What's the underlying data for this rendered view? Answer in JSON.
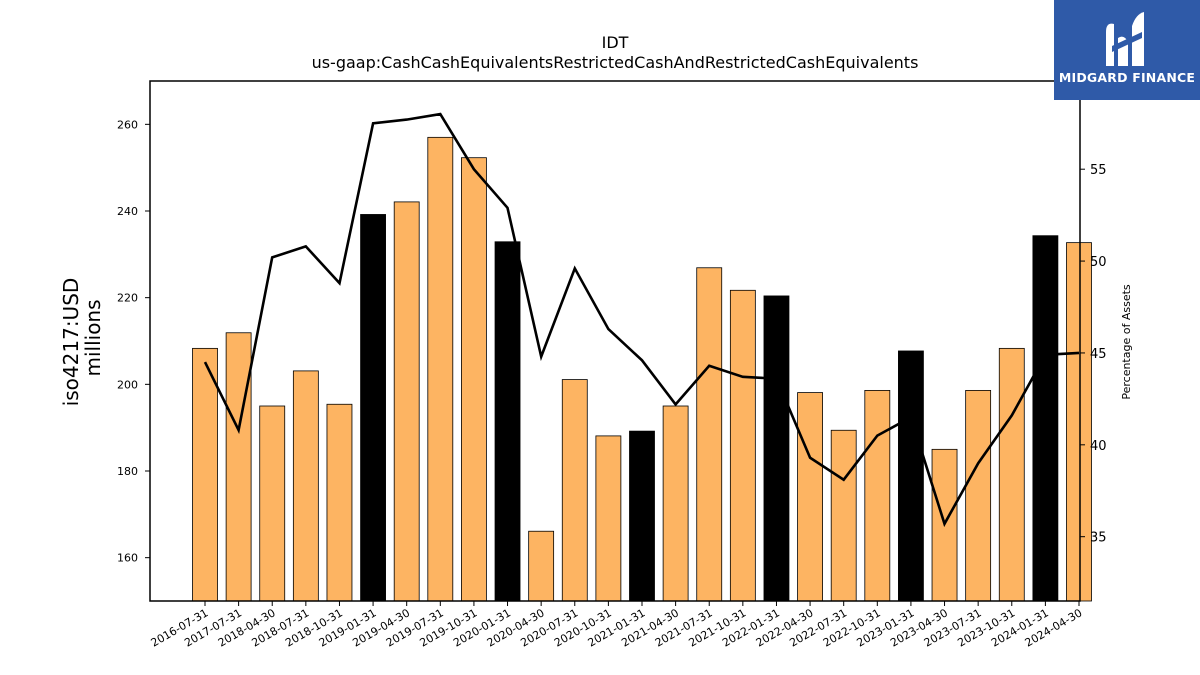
{
  "chart_data": {
    "type": "bar",
    "title": "IDT",
    "subtitle": "us-gaap:CashCashEquivalentsRestrictedCashAndRestrictedCashEquivalents",
    "ylabel": "iso4217:USD",
    "ylabel2": "millions",
    "y2label": "Percentage of Assets",
    "ylim": [
      150,
      270
    ],
    "y2lim": [
      31.5,
      59.8
    ],
    "yticks": [
      160,
      180,
      200,
      220,
      240,
      260
    ],
    "y2ticks": [
      35,
      40,
      45,
      50,
      55
    ],
    "categories": [
      "2016-07-31",
      "2017-07-31",
      "2018-04-30",
      "2018-07-31",
      "2018-10-31",
      "2019-01-31",
      "2019-04-30",
      "2019-07-31",
      "2019-10-31",
      "2020-01-31",
      "2020-04-30",
      "2020-07-31",
      "2020-10-31",
      "2021-01-31",
      "2021-04-30",
      "2021-07-31",
      "2021-10-31",
      "2022-01-31",
      "2022-04-30",
      "2022-07-31",
      "2022-10-31",
      "2023-01-31",
      "2023-04-30",
      "2023-07-31",
      "2023-10-31",
      "2024-01-31",
      "2024-04-30"
    ],
    "series": [
      {
        "values": [
          208.3,
          211.9,
          195.0,
          203.1,
          195.4,
          239.2,
          242.1,
          257.0,
          252.3,
          232.9,
          166.1,
          201.1,
          188.1,
          189.2,
          195.0,
          226.9,
          221.7,
          220.4,
          198.1,
          189.4,
          198.6,
          207.7,
          185.0,
          198.6,
          208.3,
          234.3,
          232.7
        ],
        "highlight": [
          false,
          false,
          false,
          false,
          false,
          true,
          false,
          false,
          false,
          true,
          false,
          false,
          false,
          true,
          false,
          false,
          false,
          true,
          false,
          false,
          false,
          true,
          false,
          false,
          false,
          true,
          false
        ]
      },
      {
        "type": "line",
        "axis": "right",
        "values": [
          44.5,
          40.8,
          50.2,
          50.8,
          48.8,
          57.5,
          57.7,
          58.0,
          55.0,
          52.9,
          44.8,
          49.6,
          46.3,
          44.6,
          42.2,
          44.3,
          43.7,
          43.6,
          39.3,
          38.1,
          40.5,
          41.5,
          35.7,
          39.0,
          41.6,
          44.9,
          45.0
        ]
      }
    ],
    "colors": {
      "bar": "#fdb462",
      "bar_highlight": "#000000",
      "line": "#000000"
    }
  },
  "logo": {
    "text": "MIDGARD FINANCE",
    "bg": "#2f5aa8"
  }
}
